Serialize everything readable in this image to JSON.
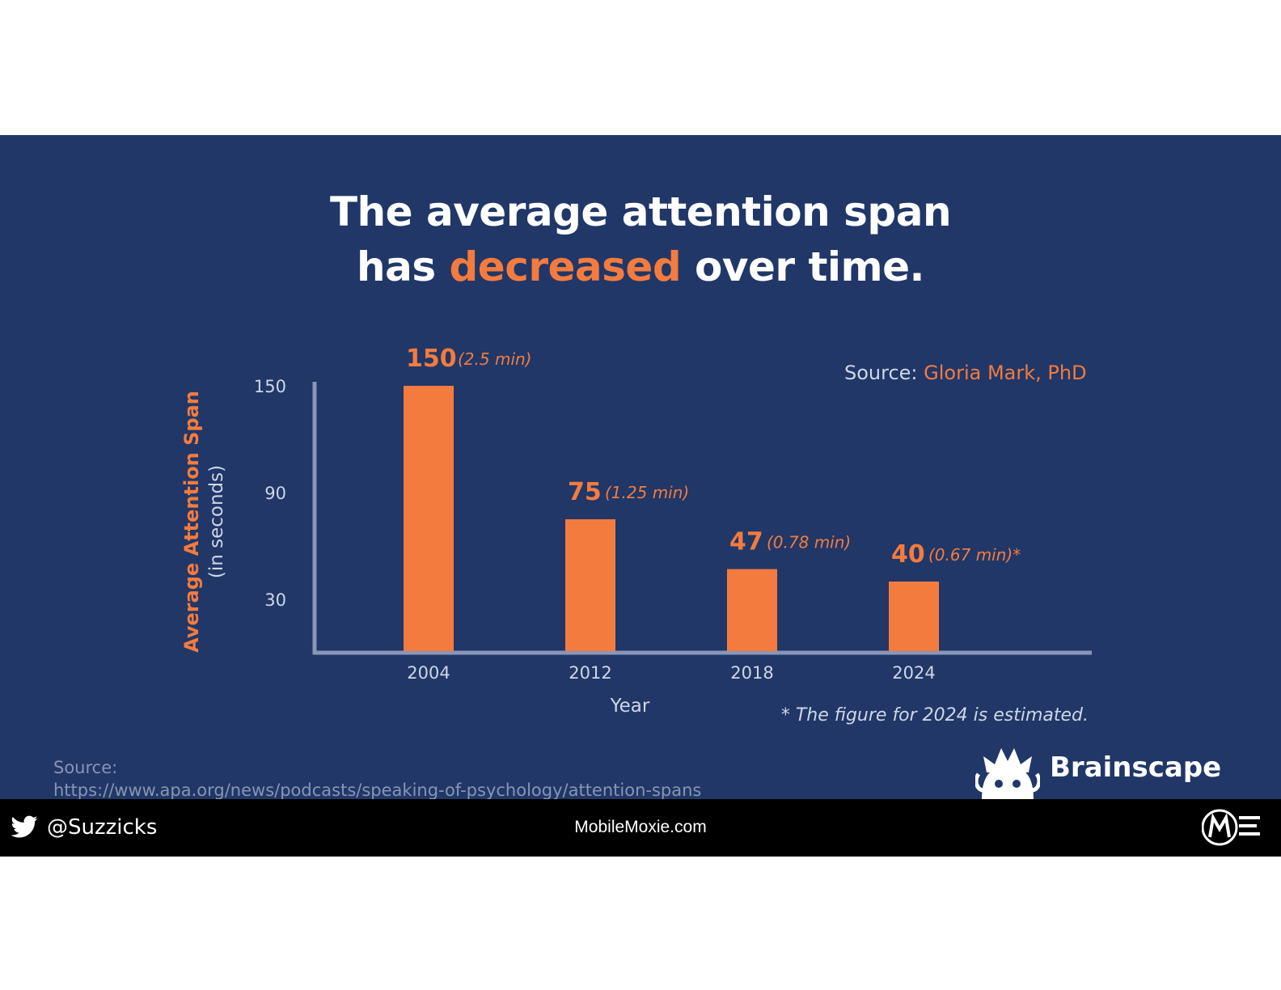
{
  "slide": {
    "title_line1": "The average attention span",
    "title_line2_pre": "has ",
    "title_line2_accent": "decreased",
    "title_line2_post": " over time.",
    "source_label": "Source: ",
    "source_name": "Gloria Mark, PhD",
    "footnote": "* The figure for 2024 is estimated.",
    "source_bottom_label": "Source:",
    "source_bottom_url": "https://www.apa.org/news/podcasts/speaking-of-psychology/attention-spans",
    "brand_name": "Brainscape",
    "brand_icon": "brainscape-logo-icon"
  },
  "chart_data": {
    "type": "bar",
    "categories": [
      "2004",
      "2012",
      "2018",
      "2024"
    ],
    "values": [
      150,
      75,
      47,
      40
    ],
    "value_labels": [
      "150",
      "75",
      "47",
      "40"
    ],
    "value_notes": [
      "(2.5 min)",
      "(1.25 min)",
      "(0.78 min)",
      "(0.67 min)*"
    ],
    "ylabel": "Average Attention Span",
    "ylabel_sub": "(in seconds)",
    "xlabel": "Year",
    "yticks": [
      150,
      90,
      30
    ],
    "ylim": [
      0,
      150
    ],
    "grid": false,
    "bar_color": "#f47b3e",
    "axis_color": "#8a96b8"
  },
  "footer": {
    "twitter_icon": "twitter-bird-icon",
    "handle": "@Suzzicks",
    "site": "MobileMoxie.com",
    "logo_icon": "mobile-moxie-logo-icon"
  }
}
